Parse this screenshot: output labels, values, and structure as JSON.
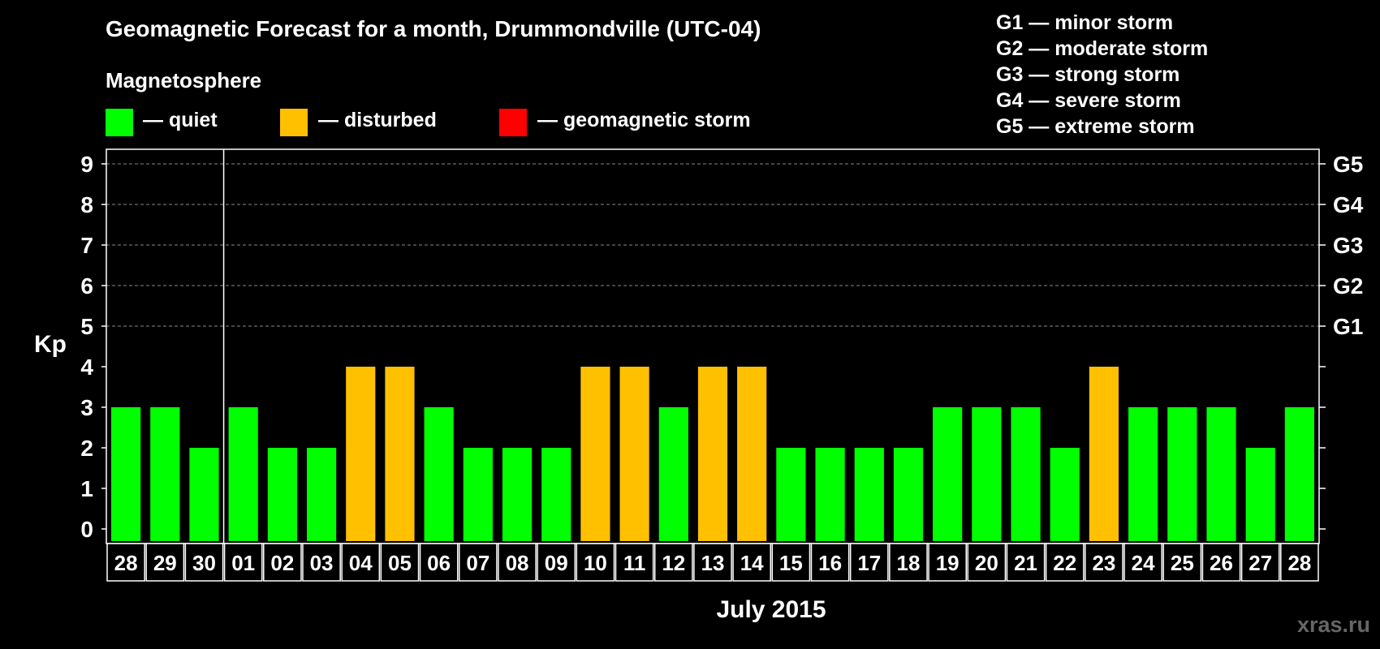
{
  "title": "Geomagnetic Forecast for a month, Drummondville (UTC-04)",
  "legend": {
    "heading": "Magnetosphere",
    "items": [
      {
        "label": "— quiet",
        "color": "#00ff00"
      },
      {
        "label": "— disturbed",
        "color": "#ffc000"
      },
      {
        "label": "— geomagnetic storm",
        "color": "#ff0000"
      }
    ],
    "storm_levels": [
      "G1 — minor storm",
      "G2 — moderate storm",
      "G3 — strong storm",
      "G4 — severe storm",
      "G5 — extreme storm"
    ]
  },
  "watermark": "xras.ru",
  "chart_data": {
    "type": "bar",
    "title": "Geomagnetic Forecast for a month, Drummondville (UTC-04)",
    "ylabel": "Kp",
    "xlabel": "July 2015",
    "ylim": [
      0,
      9
    ],
    "yticks": [
      "0",
      "1",
      "2",
      "3",
      "4",
      "5",
      "6",
      "7",
      "8",
      "9"
    ],
    "right_ticks": [
      {
        "value": 5,
        "label": "G1"
      },
      {
        "value": 6,
        "label": "G2"
      },
      {
        "value": 7,
        "label": "G3"
      },
      {
        "value": 8,
        "label": "G4"
      },
      {
        "value": 9,
        "label": "G5"
      }
    ],
    "grid": "dashed lines at Kp 5–9",
    "categories": [
      "28",
      "29",
      "30",
      "01",
      "02",
      "03",
      "04",
      "05",
      "06",
      "07",
      "08",
      "09",
      "10",
      "11",
      "12",
      "13",
      "14",
      "15",
      "16",
      "17",
      "18",
      "19",
      "20",
      "21",
      "22",
      "23",
      "24",
      "25",
      "26",
      "27",
      "28"
    ],
    "values": [
      3,
      3,
      2,
      3,
      2,
      2,
      4,
      4,
      3,
      2,
      2,
      2,
      4,
      4,
      3,
      4,
      4,
      2,
      2,
      2,
      2,
      3,
      3,
      3,
      2,
      4,
      3,
      3,
      3,
      2,
      3
    ],
    "month_separator_after": "30",
    "color_rule": {
      "quiet": "Kp < 4",
      "disturbed": "Kp = 4",
      "storm": "Kp >= 5"
    }
  }
}
